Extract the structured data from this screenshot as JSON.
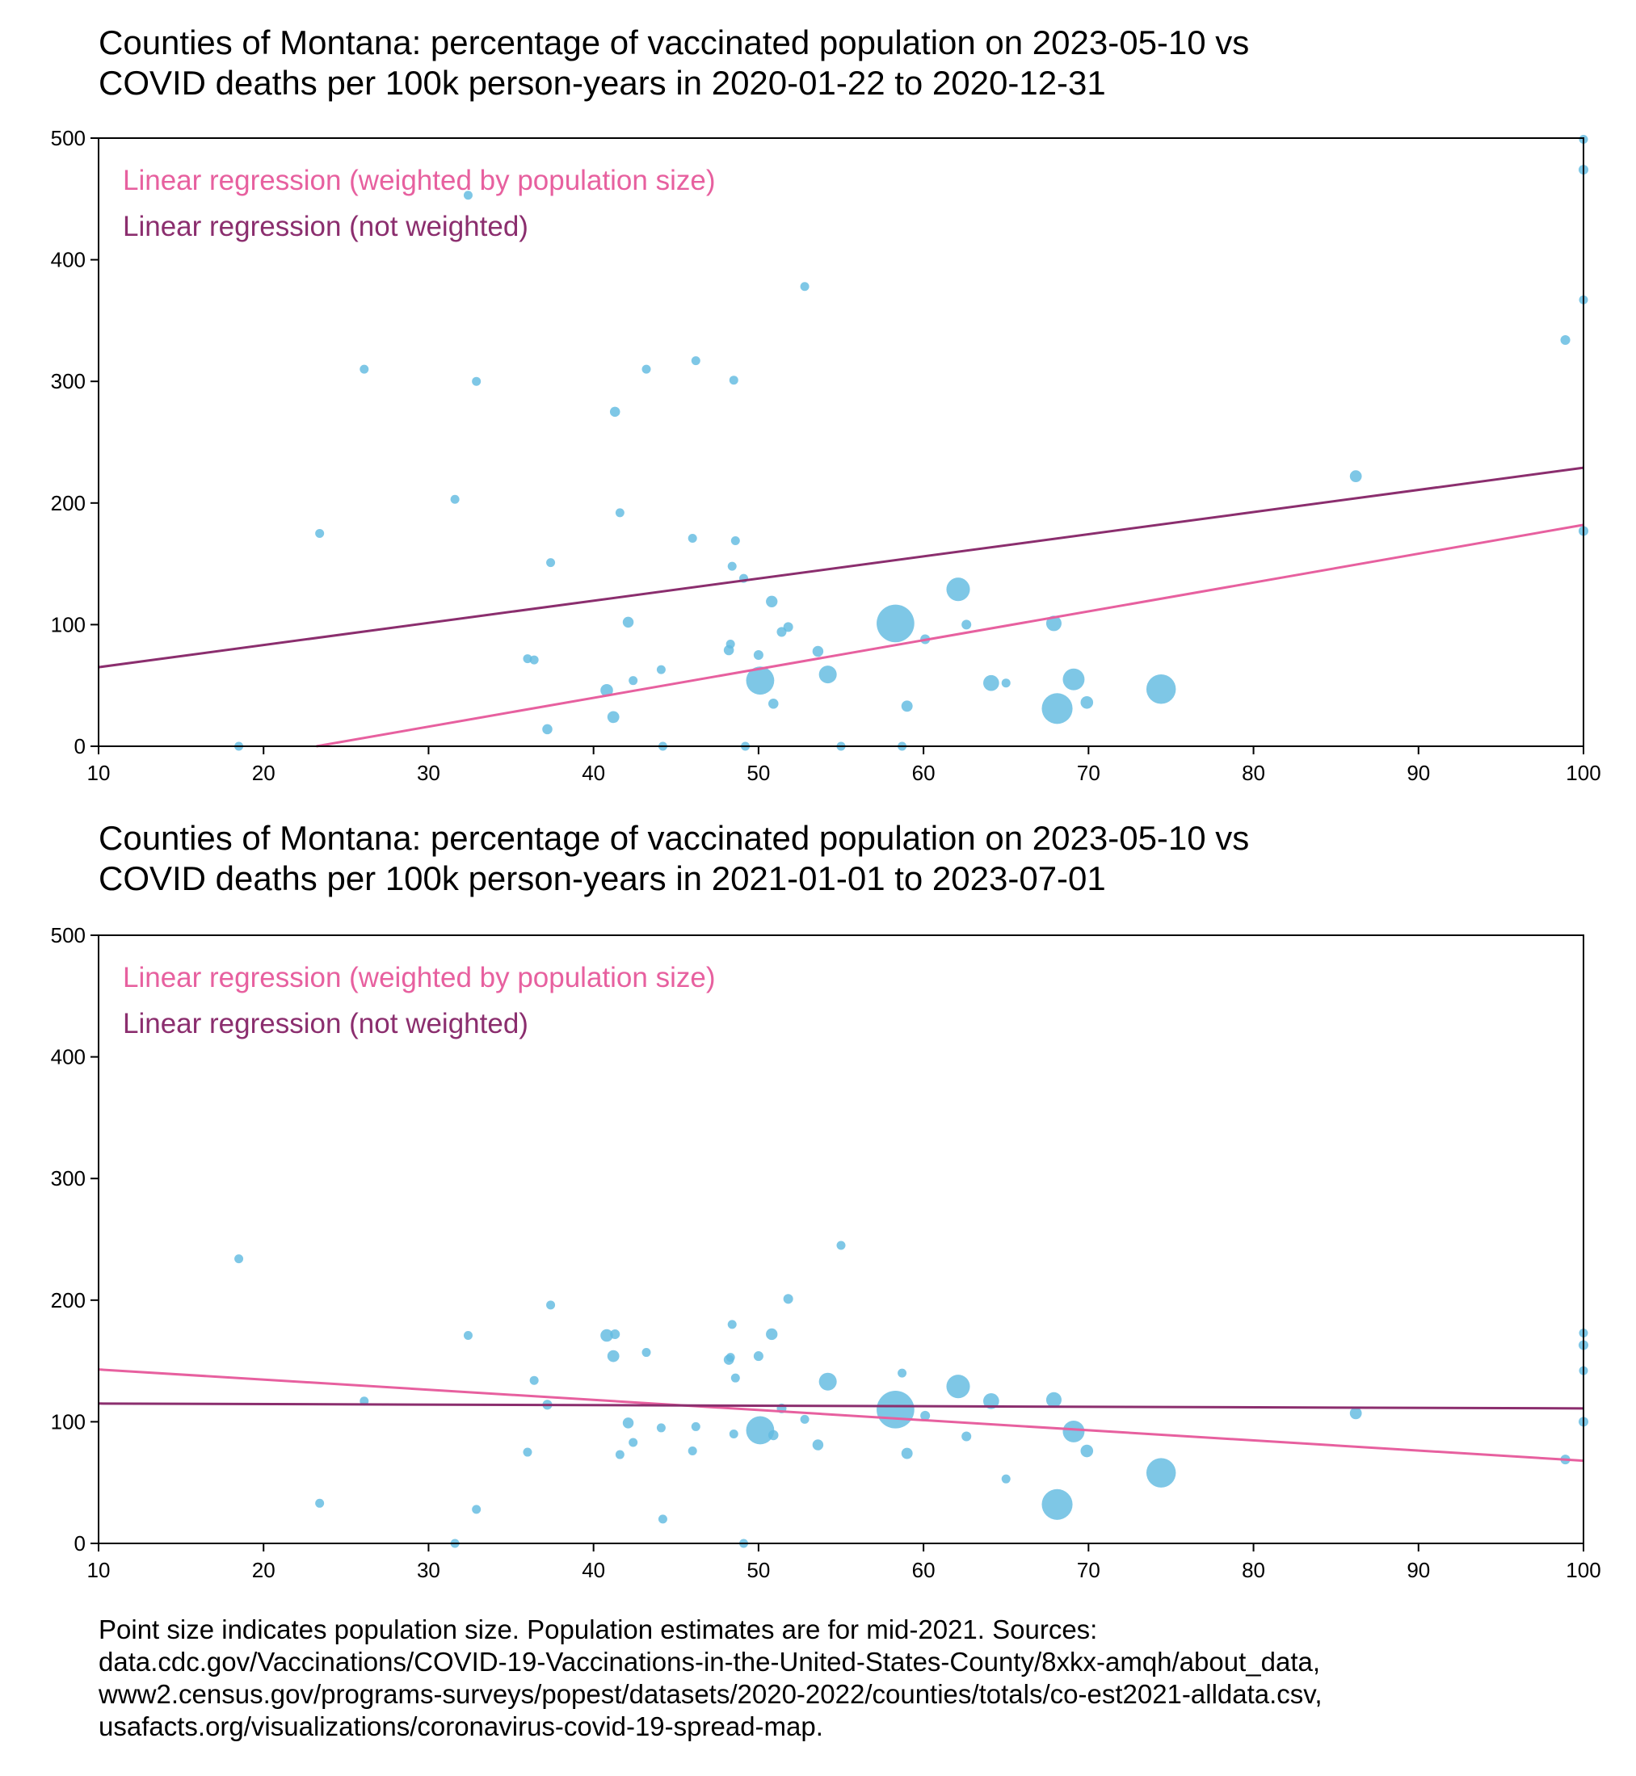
{
  "colors": {
    "points": "#62bbe0",
    "weighted_line": "#e7609f",
    "unweighted_line": "#8b2e6e",
    "axes": "#000000"
  },
  "footnote": {
    "lines": [
      "Point size indicates population size. Population estimates are for mid-2021. Sources:",
      "data.cdc.gov/Vaccinations/COVID-19-Vaccinations-in-the-United-States-County/8xkx-amqh/about_data,",
      "www2.census.gov/programs-surveys/popest/datasets/2020-2022/counties/totals/co-est2021-alldata.csv,",
      "usafacts.org/visualizations/coronavirus-covid-19-spread-map."
    ]
  },
  "chart_data": [
    {
      "type": "scatter",
      "title": "Counties of Montana: percentage of vaccinated population on 2023-05-10 vs\nCOVID deaths per 100k person-years in 2020-01-22 to 2020-12-31",
      "xlabel": "",
      "ylabel": "",
      "xlim": [
        10,
        100
      ],
      "ylim": [
        0,
        500
      ],
      "xticks": [
        10,
        20,
        30,
        40,
        50,
        60,
        70,
        80,
        90,
        100
      ],
      "yticks": [
        0,
        100,
        200,
        300,
        400,
        500
      ],
      "grid": false,
      "legend_placement": "top-left",
      "legend": [
        "Linear regression (weighted by population size)",
        "Linear regression (not weighted)"
      ],
      "point_size_note": "size proportional to population",
      "points": [
        {
          "x": 18.5,
          "y": 0,
          "s": 1
        },
        {
          "x": 23.4,
          "y": 175,
          "s": 1
        },
        {
          "x": 26.1,
          "y": 310,
          "s": 1
        },
        {
          "x": 31.6,
          "y": 203,
          "s": 1
        },
        {
          "x": 32.4,
          "y": 453,
          "s": 1
        },
        {
          "x": 32.9,
          "y": 300,
          "s": 1
        },
        {
          "x": 36.0,
          "y": 72,
          "s": 1
        },
        {
          "x": 36.4,
          "y": 71,
          "s": 1
        },
        {
          "x": 37.2,
          "y": 14,
          "s": 1.3
        },
        {
          "x": 37.4,
          "y": 151,
          "s": 1
        },
        {
          "x": 40.8,
          "y": 46,
          "s": 2
        },
        {
          "x": 41.2,
          "y": 24,
          "s": 1.8
        },
        {
          "x": 41.3,
          "y": 275,
          "s": 1.3
        },
        {
          "x": 41.6,
          "y": 192,
          "s": 1
        },
        {
          "x": 42.1,
          "y": 102,
          "s": 1.5
        },
        {
          "x": 42.4,
          "y": 54,
          "s": 1
        },
        {
          "x": 43.2,
          "y": 310,
          "s": 1
        },
        {
          "x": 44.1,
          "y": 63,
          "s": 1
        },
        {
          "x": 44.2,
          "y": 0,
          "s": 1
        },
        {
          "x": 46.0,
          "y": 171,
          "s": 1
        },
        {
          "x": 46.2,
          "y": 317,
          "s": 1
        },
        {
          "x": 48.2,
          "y": 79,
          "s": 1.3
        },
        {
          "x": 48.3,
          "y": 84,
          "s": 1
        },
        {
          "x": 48.4,
          "y": 148,
          "s": 1
        },
        {
          "x": 48.5,
          "y": 301,
          "s": 1
        },
        {
          "x": 48.6,
          "y": 169,
          "s": 1
        },
        {
          "x": 49.1,
          "y": 138,
          "s": 1
        },
        {
          "x": 49.2,
          "y": 0,
          "s": 1
        },
        {
          "x": 50.0,
          "y": 75,
          "s": 1.2
        },
        {
          "x": 50.1,
          "y": 54,
          "s": 10
        },
        {
          "x": 50.8,
          "y": 119,
          "s": 1.7
        },
        {
          "x": 50.9,
          "y": 35,
          "s": 1.3
        },
        {
          "x": 51.4,
          "y": 94,
          "s": 1.2
        },
        {
          "x": 51.8,
          "y": 98,
          "s": 1.2
        },
        {
          "x": 52.8,
          "y": 378,
          "s": 1
        },
        {
          "x": 53.6,
          "y": 78,
          "s": 1.5
        },
        {
          "x": 54.2,
          "y": 59,
          "s": 4
        },
        {
          "x": 55.0,
          "y": 0,
          "s": 1
        },
        {
          "x": 58.3,
          "y": 101,
          "s": 18
        },
        {
          "x": 58.7,
          "y": 0,
          "s": 1
        },
        {
          "x": 59.0,
          "y": 33,
          "s": 1.6
        },
        {
          "x": 60.1,
          "y": 88,
          "s": 1.2
        },
        {
          "x": 62.1,
          "y": 129,
          "s": 7
        },
        {
          "x": 62.6,
          "y": 100,
          "s": 1.2
        },
        {
          "x": 64.1,
          "y": 52,
          "s": 3.2
        },
        {
          "x": 65.0,
          "y": 52,
          "s": 1
        },
        {
          "x": 67.9,
          "y": 101,
          "s": 3
        },
        {
          "x": 68.1,
          "y": 31,
          "s": 12
        },
        {
          "x": 69.1,
          "y": 55,
          "s": 6
        },
        {
          "x": 69.9,
          "y": 36,
          "s": 2
        },
        {
          "x": 74.4,
          "y": 47,
          "s": 11
        },
        {
          "x": 86.2,
          "y": 222,
          "s": 1.8
        },
        {
          "x": 98.9,
          "y": 334,
          "s": 1.2
        },
        {
          "x": 100,
          "y": 499,
          "s": 1
        },
        {
          "x": 100,
          "y": 474,
          "s": 1.2
        },
        {
          "x": 100,
          "y": 367,
          "s": 1
        },
        {
          "x": 100,
          "y": 177,
          "s": 1.2
        }
      ],
      "series": [
        {
          "name": "Linear regression (weighted by population size)",
          "x": [
            23.2,
            100
          ],
          "y": [
            0,
            182
          ]
        },
        {
          "name": "Linear regression (not weighted)",
          "x": [
            10,
            100
          ],
          "y": [
            65,
            229
          ]
        }
      ]
    },
    {
      "type": "scatter",
      "title": "Counties of Montana: percentage of vaccinated population on 2023-05-10 vs\nCOVID deaths per 100k person-years in 2021-01-01 to 2023-07-01",
      "xlabel": "",
      "ylabel": "",
      "xlim": [
        10,
        100
      ],
      "ylim": [
        0,
        500
      ],
      "xticks": [
        10,
        20,
        30,
        40,
        50,
        60,
        70,
        80,
        90,
        100
      ],
      "yticks": [
        0,
        100,
        200,
        300,
        400,
        500
      ],
      "grid": false,
      "legend_placement": "top-left",
      "legend": [
        "Linear regression (weighted by population size)",
        "Linear regression (not weighted)"
      ],
      "point_size_note": "size proportional to population",
      "points": [
        {
          "x": 18.5,
          "y": 234,
          "s": 1
        },
        {
          "x": 23.4,
          "y": 33,
          "s": 1
        },
        {
          "x": 26.1,
          "y": 117,
          "s": 1
        },
        {
          "x": 31.6,
          "y": 0,
          "s": 1
        },
        {
          "x": 32.4,
          "y": 171,
          "s": 1
        },
        {
          "x": 32.9,
          "y": 28,
          "s": 1
        },
        {
          "x": 36.0,
          "y": 75,
          "s": 1
        },
        {
          "x": 36.4,
          "y": 134,
          "s": 1
        },
        {
          "x": 37.2,
          "y": 114,
          "s": 1.2
        },
        {
          "x": 37.4,
          "y": 196,
          "s": 1
        },
        {
          "x": 40.8,
          "y": 171,
          "s": 2
        },
        {
          "x": 41.2,
          "y": 154,
          "s": 1.8
        },
        {
          "x": 41.3,
          "y": 172,
          "s": 1.2
        },
        {
          "x": 41.6,
          "y": 73,
          "s": 1
        },
        {
          "x": 42.1,
          "y": 99,
          "s": 1.5
        },
        {
          "x": 42.4,
          "y": 83,
          "s": 1
        },
        {
          "x": 43.2,
          "y": 157,
          "s": 1
        },
        {
          "x": 44.1,
          "y": 95,
          "s": 1
        },
        {
          "x": 44.2,
          "y": 20,
          "s": 1
        },
        {
          "x": 46.0,
          "y": 76,
          "s": 1
        },
        {
          "x": 46.2,
          "y": 96,
          "s": 1
        },
        {
          "x": 48.2,
          "y": 151,
          "s": 1.3
        },
        {
          "x": 48.3,
          "y": 153,
          "s": 1
        },
        {
          "x": 48.4,
          "y": 180,
          "s": 1
        },
        {
          "x": 48.5,
          "y": 90,
          "s": 1
        },
        {
          "x": 48.6,
          "y": 136,
          "s": 1
        },
        {
          "x": 49.1,
          "y": 0,
          "s": 1
        },
        {
          "x": 50.0,
          "y": 154,
          "s": 1.2
        },
        {
          "x": 50.1,
          "y": 93,
          "s": 10
        },
        {
          "x": 50.8,
          "y": 172,
          "s": 1.7
        },
        {
          "x": 50.9,
          "y": 89,
          "s": 1.3
        },
        {
          "x": 51.4,
          "y": 111,
          "s": 1.2
        },
        {
          "x": 51.8,
          "y": 201,
          "s": 1.2
        },
        {
          "x": 52.8,
          "y": 102,
          "s": 1
        },
        {
          "x": 53.6,
          "y": 81,
          "s": 1.5
        },
        {
          "x": 54.2,
          "y": 133,
          "s": 4
        },
        {
          "x": 55.0,
          "y": 245,
          "s": 1
        },
        {
          "x": 58.3,
          "y": 110,
          "s": 18
        },
        {
          "x": 58.7,
          "y": 140,
          "s": 1
        },
        {
          "x": 59.0,
          "y": 74,
          "s": 1.6
        },
        {
          "x": 60.1,
          "y": 105,
          "s": 1.2
        },
        {
          "x": 62.1,
          "y": 129,
          "s": 7
        },
        {
          "x": 62.6,
          "y": 88,
          "s": 1.2
        },
        {
          "x": 64.1,
          "y": 117,
          "s": 3.2
        },
        {
          "x": 65.0,
          "y": 53,
          "s": 1
        },
        {
          "x": 67.9,
          "y": 118,
          "s": 3
        },
        {
          "x": 68.1,
          "y": 32,
          "s": 12
        },
        {
          "x": 69.1,
          "y": 92,
          "s": 6
        },
        {
          "x": 69.9,
          "y": 76,
          "s": 2
        },
        {
          "x": 74.4,
          "y": 58,
          "s": 11
        },
        {
          "x": 86.2,
          "y": 107,
          "s": 1.8
        },
        {
          "x": 98.9,
          "y": 69,
          "s": 1.2
        },
        {
          "x": 100,
          "y": 173,
          "s": 1
        },
        {
          "x": 100,
          "y": 163,
          "s": 1.2
        },
        {
          "x": 100,
          "y": 142,
          "s": 1
        },
        {
          "x": 100,
          "y": 100,
          "s": 1.2
        }
      ],
      "series": [
        {
          "name": "Linear regression (weighted by population size)",
          "x": [
            10,
            100
          ],
          "y": [
            143,
            68
          ]
        },
        {
          "name": "Linear regression (not weighted)",
          "x": [
            10,
            100
          ],
          "y": [
            115,
            111
          ]
        }
      ]
    }
  ]
}
